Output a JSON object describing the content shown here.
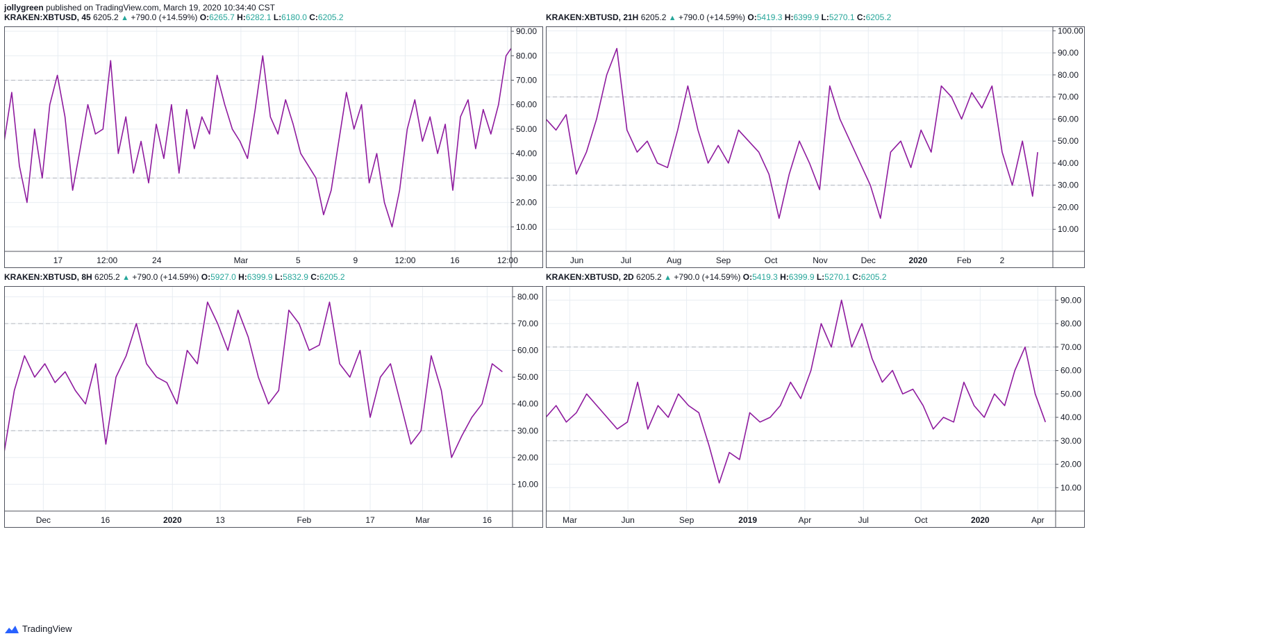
{
  "publisher": {
    "user": "jollygreen",
    "text": "published on TradingView.com, March 19, 2020 10:34:40 CST"
  },
  "brand": {
    "name": "TradingView"
  },
  "colors": {
    "line": "#8e1a9e",
    "grid": "#e8edf2",
    "dash": "#b2b5be",
    "up": "#26a69a",
    "axis": "#50535e"
  },
  "panels": [
    {
      "symbol": "KRAKEN:XBTUSD, 45",
      "last": "6205.2",
      "arrow": "▲",
      "change": "+790.0 (+14.59%)",
      "o": "6265.7",
      "h": "6282.1",
      "l": "6180.0",
      "c": "6205.2",
      "ohlc_labels": [
        "O:",
        "H:",
        "L:",
        "C:"
      ],
      "chart_data": {
        "type": "line",
        "ylim": [
          0,
          92
        ],
        "yticks": [
          "10.00",
          "20.00",
          "30.00",
          "40.00",
          "50.00",
          "60.00",
          "70.00",
          "80.00",
          "90.00"
        ],
        "hlines": [
          70,
          30
        ],
        "xticks": [
          "17",
          "12:00",
          "24",
          "Mar",
          "5",
          "9",
          "12:00",
          "16",
          "12:00"
        ],
        "xtick_positions": [
          0.106,
          0.203,
          0.301,
          0.467,
          0.58,
          0.693,
          0.791,
          0.889,
          0.993
        ],
        "xlim": [
          0,
          1
        ],
        "x": [
          0.0,
          0.015,
          0.03,
          0.045,
          0.06,
          0.075,
          0.09,
          0.105,
          0.12,
          0.135,
          0.15,
          0.165,
          0.18,
          0.195,
          0.21,
          0.225,
          0.24,
          0.255,
          0.27,
          0.285,
          0.3,
          0.315,
          0.33,
          0.345,
          0.36,
          0.375,
          0.39,
          0.405,
          0.42,
          0.435,
          0.45,
          0.465,
          0.48,
          0.495,
          0.51,
          0.525,
          0.54,
          0.555,
          0.57,
          0.585,
          0.6,
          0.615,
          0.63,
          0.645,
          0.66,
          0.675,
          0.69,
          0.705,
          0.72,
          0.735,
          0.75,
          0.765,
          0.78,
          0.795,
          0.81,
          0.825,
          0.84,
          0.855,
          0.87,
          0.885,
          0.9,
          0.915,
          0.93,
          0.945,
          0.96,
          0.975,
          0.99,
          1.0
        ],
        "y": [
          45,
          65,
          35,
          20,
          50,
          30,
          60,
          72,
          55,
          25,
          42,
          60,
          48,
          50,
          78,
          40,
          55,
          32,
          45,
          28,
          52,
          38,
          60,
          32,
          58,
          42,
          55,
          48,
          72,
          60,
          50,
          45,
          38,
          58,
          80,
          55,
          48,
          62,
          52,
          40,
          35,
          30,
          15,
          25,
          45,
          65,
          50,
          60,
          28,
          40,
          20,
          10,
          25,
          50,
          62,
          45,
          55,
          40,
          52,
          25,
          55,
          62,
          42,
          58,
          48,
          60,
          80,
          83
        ]
      }
    },
    {
      "symbol": "KRAKEN:XBTUSD, 21H",
      "last": "6205.2",
      "arrow": "▲",
      "change": "+790.0 (+14.59%)",
      "o": "5419.3",
      "h": "6399.9",
      "l": "5270.1",
      "c": "6205.2",
      "ohlc_labels": [
        "O:",
        "H:",
        "L:",
        "C:"
      ],
      "chart_data": {
        "type": "line",
        "ylim": [
          0,
          102
        ],
        "yticks": [
          "10.00",
          "20.00",
          "30.00",
          "40.00",
          "50.00",
          "60.00",
          "70.00",
          "80.00",
          "90.00",
          "100.00"
        ],
        "hlines": [
          70,
          30
        ],
        "xticks": [
          "Jun",
          "Jul",
          "Aug",
          "Sep",
          "Oct",
          "Nov",
          "Dec",
          "2020",
          "Feb",
          "2"
        ],
        "xtick_positions": [
          0.061,
          0.158,
          0.253,
          0.35,
          0.444,
          0.541,
          0.636,
          0.734,
          0.825,
          0.9
        ],
        "xlim": [
          0,
          1
        ],
        "x": [
          0.0,
          0.02,
          0.04,
          0.06,
          0.08,
          0.1,
          0.12,
          0.14,
          0.16,
          0.18,
          0.2,
          0.22,
          0.24,
          0.26,
          0.28,
          0.3,
          0.32,
          0.34,
          0.36,
          0.38,
          0.4,
          0.42,
          0.44,
          0.46,
          0.48,
          0.5,
          0.52,
          0.54,
          0.56,
          0.58,
          0.6,
          0.62,
          0.64,
          0.66,
          0.68,
          0.7,
          0.72,
          0.74,
          0.76,
          0.78,
          0.8,
          0.82,
          0.84,
          0.86,
          0.88,
          0.9,
          0.92,
          0.94,
          0.96,
          0.97
        ],
        "y": [
          60,
          55,
          62,
          35,
          45,
          60,
          80,
          92,
          55,
          45,
          50,
          40,
          38,
          55,
          75,
          55,
          40,
          48,
          40,
          55,
          50,
          45,
          35,
          15,
          35,
          50,
          40,
          28,
          75,
          60,
          50,
          40,
          30,
          15,
          45,
          50,
          38,
          55,
          45,
          75,
          70,
          60,
          72,
          65,
          75,
          45,
          30,
          50,
          25,
          45
        ]
      }
    },
    {
      "symbol": "KRAKEN:XBTUSD, 8H",
      "last": "6205.2",
      "arrow": "▲",
      "change": "+790.0 (+14.59%)",
      "o": "5927.0",
      "h": "6399.9",
      "l": "5832.9",
      "c": "6205.2",
      "ohlc_labels": [
        "O:",
        "H:",
        "L:",
        "C:"
      ],
      "chart_data": {
        "type": "line",
        "ylim": [
          0,
          84
        ],
        "yticks": [
          "10.00",
          "20.00",
          "30.00",
          "40.00",
          "50.00",
          "60.00",
          "70.00",
          "80.00"
        ],
        "hlines": [
          70,
          30
        ],
        "xticks": [
          "Dec",
          "16",
          "2020",
          "13",
          "Feb",
          "17",
          "Mar",
          "16"
        ],
        "xtick_positions": [
          0.077,
          0.199,
          0.331,
          0.425,
          0.59,
          0.72,
          0.823,
          0.95
        ],
        "xlim": [
          0,
          1
        ],
        "x": [
          0.0,
          0.02,
          0.04,
          0.06,
          0.08,
          0.1,
          0.12,
          0.14,
          0.16,
          0.18,
          0.2,
          0.22,
          0.24,
          0.26,
          0.28,
          0.3,
          0.32,
          0.34,
          0.36,
          0.38,
          0.4,
          0.42,
          0.44,
          0.46,
          0.48,
          0.5,
          0.52,
          0.54,
          0.56,
          0.58,
          0.6,
          0.62,
          0.64,
          0.66,
          0.68,
          0.7,
          0.72,
          0.74,
          0.76,
          0.78,
          0.8,
          0.82,
          0.84,
          0.86,
          0.88,
          0.9,
          0.92,
          0.94,
          0.96,
          0.98
        ],
        "y": [
          22,
          45,
          58,
          50,
          55,
          48,
          52,
          45,
          40,
          55,
          25,
          50,
          58,
          70,
          55,
          50,
          48,
          40,
          60,
          55,
          78,
          70,
          60,
          75,
          65,
          50,
          40,
          45,
          75,
          70,
          60,
          62,
          78,
          55,
          50,
          60,
          35,
          50,
          55,
          40,
          25,
          30,
          58,
          45,
          20,
          28,
          35,
          40,
          55,
          52
        ]
      }
    },
    {
      "symbol": "KRAKEN:XBTUSD, 2D",
      "last": "6205.2",
      "arrow": "▲",
      "change": "+790.0 (+14.59%)",
      "o": "5419.3",
      "h": "6399.9",
      "l": "5270.1",
      "c": "6205.2",
      "ohlc_labels": [
        "O:",
        "H:",
        "L:",
        "C:"
      ],
      "chart_data": {
        "type": "line",
        "ylim": [
          0,
          96
        ],
        "yticks": [
          "10.00",
          "20.00",
          "30.00",
          "40.00",
          "50.00",
          "60.00",
          "70.00",
          "80.00",
          "90.00"
        ],
        "hlines": [
          70,
          30
        ],
        "xticks": [
          "Mar",
          "Jun",
          "Sep",
          "2019",
          "Apr",
          "Jul",
          "Oct",
          "2020",
          "Apr"
        ],
        "xtick_positions": [
          0.047,
          0.161,
          0.276,
          0.396,
          0.508,
          0.623,
          0.736,
          0.852,
          0.965
        ],
        "xlim": [
          0,
          1
        ],
        "x": [
          0.0,
          0.02,
          0.04,
          0.06,
          0.08,
          0.1,
          0.12,
          0.14,
          0.16,
          0.18,
          0.2,
          0.22,
          0.24,
          0.26,
          0.28,
          0.3,
          0.32,
          0.34,
          0.36,
          0.38,
          0.4,
          0.42,
          0.44,
          0.46,
          0.48,
          0.5,
          0.52,
          0.54,
          0.56,
          0.58,
          0.6,
          0.62,
          0.64,
          0.66,
          0.68,
          0.7,
          0.72,
          0.74,
          0.76,
          0.78,
          0.8,
          0.82,
          0.84,
          0.86,
          0.88,
          0.9,
          0.92,
          0.94,
          0.96,
          0.98
        ],
        "y": [
          40,
          45,
          38,
          42,
          50,
          45,
          40,
          35,
          38,
          55,
          35,
          45,
          40,
          50,
          45,
          42,
          28,
          12,
          25,
          22,
          42,
          38,
          40,
          45,
          55,
          48,
          60,
          80,
          70,
          90,
          70,
          80,
          65,
          55,
          60,
          50,
          52,
          45,
          35,
          40,
          38,
          55,
          45,
          40,
          50,
          45,
          60,
          70,
          50,
          38
        ]
      }
    }
  ]
}
